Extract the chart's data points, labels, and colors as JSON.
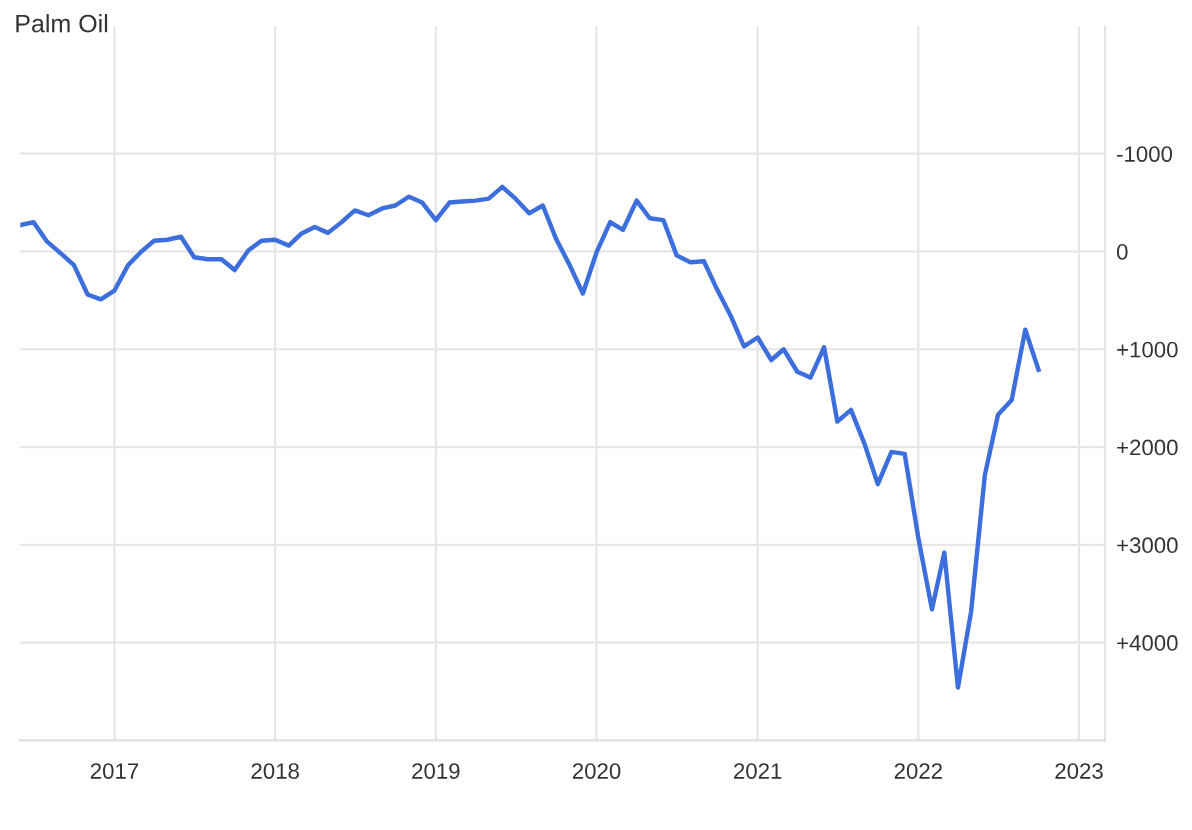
{
  "chart_data": {
    "type": "line",
    "title": "Palm Oil",
    "x": [
      "2016-06",
      "2016-07",
      "2016-08",
      "2016-09",
      "2016-10",
      "2016-11",
      "2016-12",
      "2017-01",
      "2017-02",
      "2017-03",
      "2017-04",
      "2017-05",
      "2017-06",
      "2017-07",
      "2017-08",
      "2017-09",
      "2017-10",
      "2017-11",
      "2017-12",
      "2018-01",
      "2018-02",
      "2018-03",
      "2018-04",
      "2018-05",
      "2018-06",
      "2018-07",
      "2018-08",
      "2018-09",
      "2018-10",
      "2018-11",
      "2018-12",
      "2019-01",
      "2019-02",
      "2019-03",
      "2019-04",
      "2019-05",
      "2019-06",
      "2019-07",
      "2019-08",
      "2019-09",
      "2019-10",
      "2019-11",
      "2019-12",
      "2020-01",
      "2020-02",
      "2020-03",
      "2020-04",
      "2020-05",
      "2020-06",
      "2020-07",
      "2020-08",
      "2020-09",
      "2020-10",
      "2020-11",
      "2020-12",
      "2021-01",
      "2021-02",
      "2021-03",
      "2021-04",
      "2021-05",
      "2021-06",
      "2021-07",
      "2021-08",
      "2021-09",
      "2021-10",
      "2021-11",
      "2021-12",
      "2022-01",
      "2022-02",
      "2022-03",
      "2022-04",
      "2022-05",
      "2022-06",
      "2022-07",
      "2022-08",
      "2022-09",
      "2022-10"
    ],
    "series": [
      {
        "color": "#3d6fdc",
        "values": [
          -270,
          -300,
          -100,
          20,
          140,
          440,
          490,
          400,
          140,
          10,
          -110,
          -120,
          -150,
          60,
          80,
          80,
          190,
          -10,
          -110,
          -120,
          -60,
          -180,
          -250,
          -190,
          -300,
          -420,
          -370,
          -440,
          -470,
          -560,
          -500,
          -320,
          -500,
          -510,
          -520,
          -540,
          -660,
          -540,
          -390,
          -470,
          -130,
          140,
          430,
          10,
          -300,
          -220,
          -520,
          -340,
          -320,
          40,
          110,
          100,
          390,
          660,
          970,
          880,
          1110,
          1000,
          1230,
          1290,
          980,
          1740,
          1620,
          1970,
          2380,
          2050,
          2070,
          2930,
          3660,
          3080,
          4460,
          3680,
          2290,
          1670,
          1520,
          800,
          1210
        ]
      }
    ],
    "xlim": [
      "2016-06",
      "2023-03"
    ],
    "xticks": [
      "2017",
      "2018",
      "2019",
      "2020",
      "2021",
      "2022",
      "2023"
    ],
    "ylim": [
      5000,
      -2300
    ],
    "yticks": [
      {
        "value": -1000,
        "label": "-1000"
      },
      0,
      {
        "value": 1000,
        "label": "+1000"
      },
      {
        "value": 2000,
        "label": "+2000"
      },
      {
        "value": 3000,
        "label": "+3000"
      },
      {
        "value": 4000,
        "label": "+4000"
      }
    ],
    "grid": true,
    "marker": "none",
    "line_style": "solid",
    "legend": false
  }
}
